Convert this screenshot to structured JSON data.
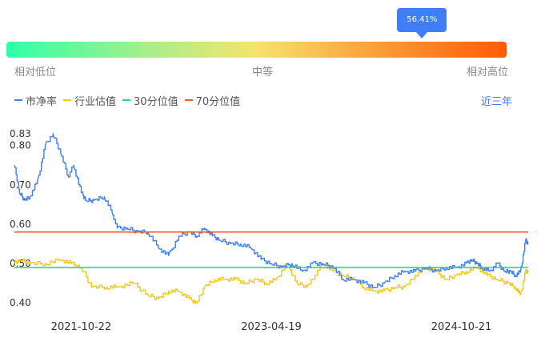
{
  "gauge": {
    "percentile_label": "56.41%",
    "percentile": 0.5641,
    "low_label": "相对低位",
    "mid_label": "中等",
    "high_label": "相对高位",
    "gradient_colors": [
      "#2effa8",
      "#a6ef8c",
      "#f7e36c",
      "#f9a43c",
      "#ff5a06"
    ],
    "accent_color": "#3f7ef6"
  },
  "legend": {
    "items": [
      {
        "label": "市净率",
        "color": "#3f7ef6"
      },
      {
        "label": "行业估值",
        "color": "#f5c518"
      },
      {
        "label": "30分位值",
        "color": "#1fd28a"
      },
      {
        "label": "70分位值",
        "color": "#f0581c"
      }
    ],
    "period_label": "近三年"
  },
  "chart_data": {
    "type": "line",
    "title": "",
    "xlabel": "",
    "ylabel": "",
    "ylim": [
      0.38,
      0.84
    ],
    "y_ticks": [
      "0.83",
      "0.80",
      "0.70",
      "0.60",
      "0.50",
      "0.40"
    ],
    "y_tick_values": [
      0.83,
      0.8,
      0.7,
      0.6,
      0.5,
      0.4
    ],
    "x_ticks": [
      {
        "label": "2021-10-22",
        "t": 0.13
      },
      {
        "label": "2023-04-19",
        "t": 0.5
      },
      {
        "label": "2024-10-21",
        "t": 0.87
      }
    ],
    "grid": false,
    "legend_position": "top-left",
    "series": [
      {
        "name": "市净率",
        "color": "#3f7ef6",
        "t": [
          0.0,
          0.01,
          0.02,
          0.03,
          0.045,
          0.06,
          0.075,
          0.09,
          0.105,
          0.115,
          0.13,
          0.14,
          0.155,
          0.175,
          0.19,
          0.2,
          0.22,
          0.24,
          0.26,
          0.28,
          0.3,
          0.32,
          0.34,
          0.355,
          0.37,
          0.385,
          0.4,
          0.42,
          0.44,
          0.46,
          0.48,
          0.5,
          0.52,
          0.54,
          0.56,
          0.58,
          0.6,
          0.62,
          0.64,
          0.66,
          0.68,
          0.7,
          0.72,
          0.74,
          0.76,
          0.78,
          0.8,
          0.82,
          0.84,
          0.86,
          0.88,
          0.89,
          0.9,
          0.91,
          0.925,
          0.94,
          0.955,
          0.965,
          0.975,
          0.985,
          0.995,
          1.0
        ],
        "values": [
          0.75,
          0.68,
          0.66,
          0.67,
          0.71,
          0.8,
          0.83,
          0.78,
          0.72,
          0.75,
          0.68,
          0.66,
          0.66,
          0.67,
          0.63,
          0.59,
          0.59,
          0.58,
          0.58,
          0.54,
          0.52,
          0.57,
          0.58,
          0.57,
          0.59,
          0.57,
          0.56,
          0.55,
          0.55,
          0.54,
          0.51,
          0.5,
          0.49,
          0.5,
          0.48,
          0.5,
          0.5,
          0.49,
          0.46,
          0.46,
          0.45,
          0.44,
          0.45,
          0.47,
          0.48,
          0.48,
          0.49,
          0.48,
          0.49,
          0.49,
          0.5,
          0.51,
          0.5,
          0.49,
          0.48,
          0.5,
          0.48,
          0.48,
          0.47,
          0.48,
          0.56,
          0.55
        ]
      },
      {
        "name": "行业估值",
        "color": "#f5c518",
        "t": [
          0.0,
          0.01,
          0.03,
          0.06,
          0.09,
          0.11,
          0.13,
          0.15,
          0.18,
          0.2,
          0.23,
          0.26,
          0.28,
          0.3,
          0.32,
          0.34,
          0.355,
          0.37,
          0.39,
          0.41,
          0.43,
          0.45,
          0.47,
          0.49,
          0.51,
          0.53,
          0.55,
          0.57,
          0.585,
          0.6,
          0.62,
          0.64,
          0.66,
          0.68,
          0.7,
          0.72,
          0.74,
          0.76,
          0.78,
          0.8,
          0.82,
          0.84,
          0.86,
          0.88,
          0.9,
          0.92,
          0.94,
          0.96,
          0.975,
          0.985,
          0.995,
          1.0
        ],
        "values": [
          0.5,
          0.51,
          0.5,
          0.5,
          0.51,
          0.5,
          0.49,
          0.44,
          0.44,
          0.44,
          0.45,
          0.42,
          0.41,
          0.43,
          0.43,
          0.41,
          0.4,
          0.44,
          0.46,
          0.46,
          0.46,
          0.45,
          0.46,
          0.45,
          0.46,
          0.5,
          0.45,
          0.44,
          0.47,
          0.5,
          0.48,
          0.47,
          0.46,
          0.44,
          0.43,
          0.43,
          0.44,
          0.44,
          0.47,
          0.49,
          0.48,
          0.46,
          0.47,
          0.48,
          0.49,
          0.47,
          0.46,
          0.45,
          0.44,
          0.42,
          0.48,
          0.48
        ]
      },
      {
        "name": "30分位值",
        "color": "#1fd28a",
        "t": [
          0,
          1
        ],
        "values": [
          0.49,
          0.49
        ]
      },
      {
        "name": "70分位值",
        "color": "#f0581c",
        "t": [
          0,
          1
        ],
        "values": [
          0.58,
          0.58
        ]
      }
    ]
  }
}
